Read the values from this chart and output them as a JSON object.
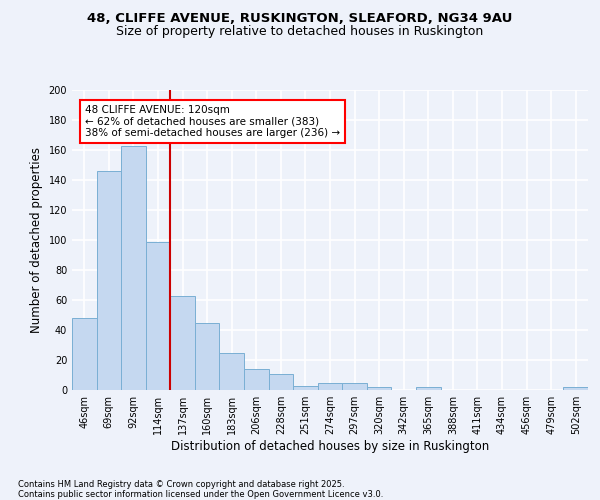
{
  "title1": "48, CLIFFE AVENUE, RUSKINGTON, SLEAFORD, NG34 9AU",
  "title2": "Size of property relative to detached houses in Ruskington",
  "xlabel": "Distribution of detached houses by size in Ruskington",
  "ylabel": "Number of detached properties",
  "categories": [
    "46sqm",
    "69sqm",
    "92sqm",
    "114sqm",
    "137sqm",
    "160sqm",
    "183sqm",
    "206sqm",
    "228sqm",
    "251sqm",
    "274sqm",
    "297sqm",
    "320sqm",
    "342sqm",
    "365sqm",
    "388sqm",
    "411sqm",
    "434sqm",
    "456sqm",
    "479sqm",
    "502sqm"
  ],
  "values": [
    48,
    146,
    163,
    99,
    63,
    45,
    25,
    14,
    11,
    3,
    5,
    5,
    2,
    0,
    2,
    0,
    0,
    0,
    0,
    0,
    2
  ],
  "bar_color": "#c5d8f0",
  "bar_edge_color": "#7aafd4",
  "vline_color": "#cc0000",
  "vline_x_index": 3.5,
  "annotation_text": "48 CLIFFE AVENUE: 120sqm\n← 62% of detached houses are smaller (383)\n38% of semi-detached houses are larger (236) →",
  "ylim": [
    0,
    200
  ],
  "yticks": [
    0,
    20,
    40,
    60,
    80,
    100,
    120,
    140,
    160,
    180,
    200
  ],
  "background_color": "#eef2fa",
  "grid_color": "#ffffff",
  "footer_text": "Contains HM Land Registry data © Crown copyright and database right 2025.\nContains public sector information licensed under the Open Government Licence v3.0.",
  "title1_fontsize": 9.5,
  "title2_fontsize": 9,
  "axis_label_fontsize": 8.5,
  "tick_fontsize": 7,
  "annotation_fontsize": 7.5,
  "footer_fontsize": 6
}
